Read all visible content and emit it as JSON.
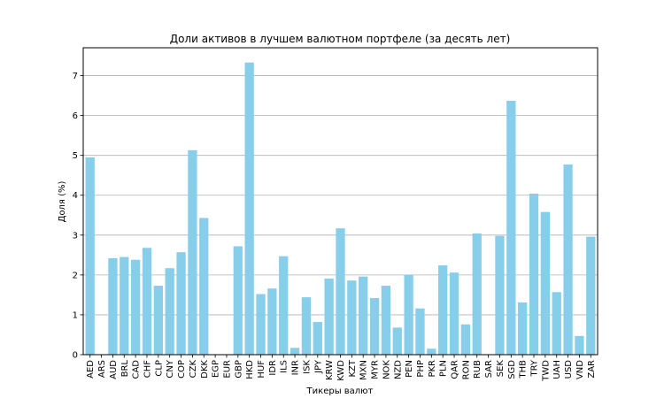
{
  "chart_data": {
    "type": "bar",
    "title": "Доли активов в лучшем валютном портфеле (за десять лет)",
    "xlabel": "Тикеры валют",
    "ylabel": "Доля (%)",
    "ylim": [
      0,
      7.7
    ],
    "yticks": [
      "0",
      "1",
      "2",
      "3",
      "4",
      "5",
      "6",
      "7"
    ],
    "grid": "horizontal",
    "bar_color": "#87ceeb",
    "categories": [
      "AED",
      "ARS",
      "AUD",
      "BRL",
      "CAD",
      "CHF",
      "CLP",
      "CNY",
      "COP",
      "CZK",
      "DKK",
      "EGP",
      "EUR",
      "GBP",
      "HKD",
      "HUF",
      "IDR",
      "ILS",
      "INR",
      "ISK",
      "JPY",
      "KRW",
      "KWD",
      "KZT",
      "MXN",
      "MYR",
      "NOK",
      "NZD",
      "PEN",
      "PHP",
      "PKR",
      "PLN",
      "QAR",
      "RON",
      "RUB",
      "SAR",
      "SEK",
      "SGD",
      "THB",
      "TRY",
      "TWD",
      "UAH",
      "USD",
      "VND",
      "ZAR"
    ],
    "values": [
      4.95,
      0,
      2.42,
      2.45,
      2.38,
      2.68,
      1.73,
      2.17,
      2.57,
      5.13,
      3.43,
      0,
      0,
      2.72,
      7.33,
      1.52,
      1.66,
      2.47,
      0.17,
      1.44,
      0.82,
      1.91,
      3.17,
      1.86,
      1.96,
      1.42,
      1.73,
      0.68,
      2.01,
      1.16,
      0.15,
      2.24,
      2.06,
      0.76,
      3.04,
      0,
      2.98,
      6.37,
      1.31,
      4.04,
      3.58,
      1.57,
      4.77,
      0.47,
      2.96
    ]
  }
}
